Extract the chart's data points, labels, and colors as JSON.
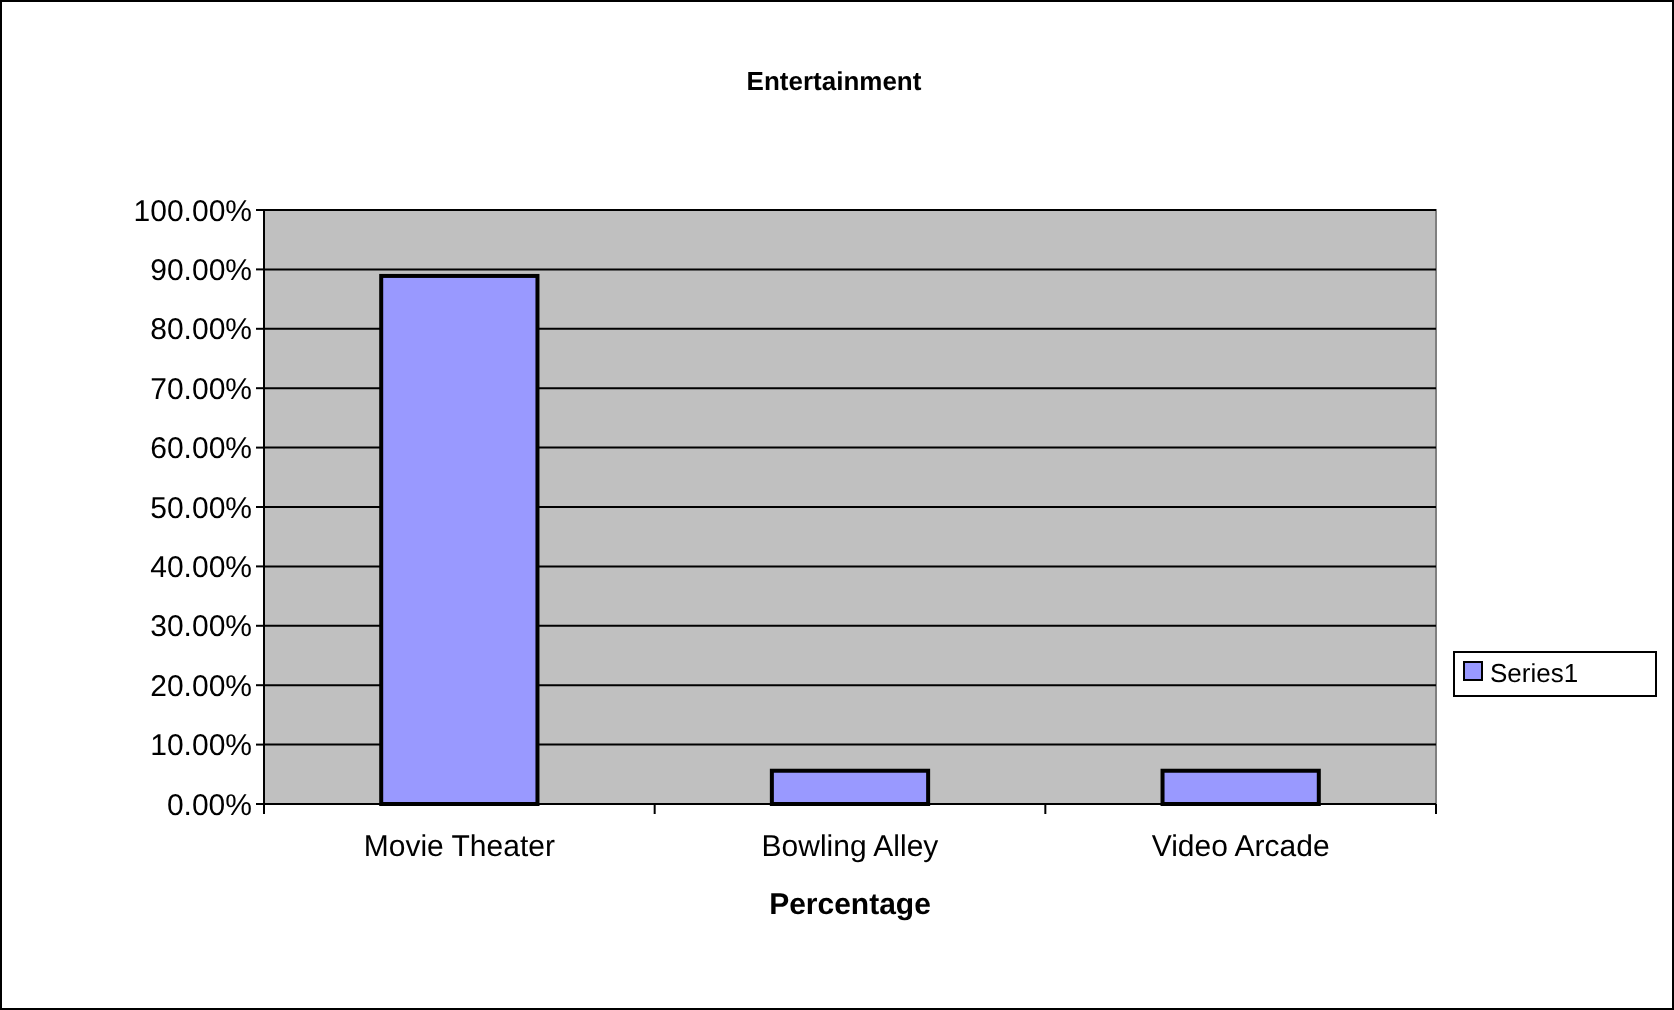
{
  "chart_data": {
    "type": "bar",
    "title": "Entertainment",
    "xlabel": "Percentage",
    "categories": [
      "Movie Theater",
      "Bowling Alley",
      "Video Arcade"
    ],
    "series": [
      {
        "name": "Series1",
        "color": "#9999ff",
        "values": [
          88.9,
          5.6,
          5.6
        ]
      }
    ],
    "ylim": [
      0,
      100
    ],
    "yticks": [
      {
        "value": 0,
        "label": "0.00%"
      },
      {
        "value": 10,
        "label": "10.00%"
      },
      {
        "value": 20,
        "label": "20.00%"
      },
      {
        "value": 30,
        "label": "30.00%"
      },
      {
        "value": 40,
        "label": "40.00%"
      },
      {
        "value": 50,
        "label": "50.00%"
      },
      {
        "value": 60,
        "label": "60.00%"
      },
      {
        "value": 70,
        "label": "70.00%"
      },
      {
        "value": 80,
        "label": "80.00%"
      },
      {
        "value": 90,
        "label": "90.00%"
      },
      {
        "value": 100,
        "label": "100.00%"
      }
    ],
    "grid": "y",
    "legend": "right"
  }
}
